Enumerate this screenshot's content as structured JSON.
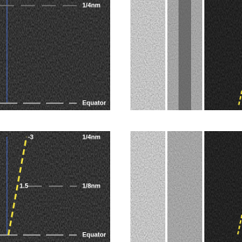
{
  "top_panel": {
    "labels": [
      "1/4nm",
      "Equator"
    ]
  },
  "bottom_panel": {
    "labels": [
      "1/4nm",
      "1/8nm",
      "Equator"
    ],
    "layer_lines": [
      "-3",
      "1.5"
    ]
  }
}
